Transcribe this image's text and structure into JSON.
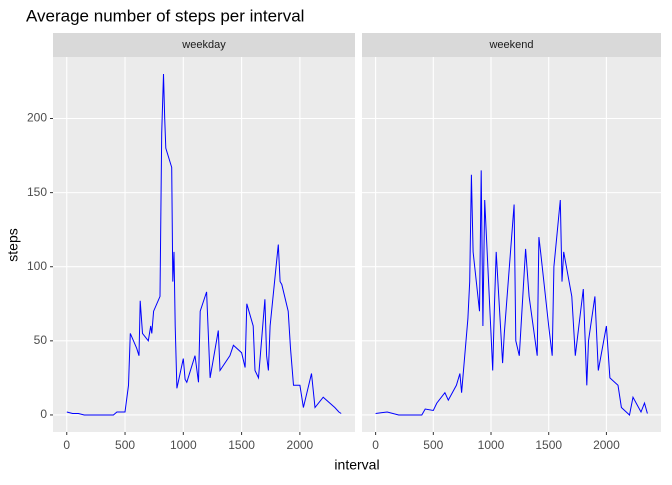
{
  "chart_data": {
    "type": "line",
    "title": "Average number of steps per interval",
    "xlabel": "interval",
    "ylabel": "steps",
    "color": "#0000ff",
    "grid": true,
    "xlim": [
      -118,
      2473
    ],
    "ylim": [
      -11.5,
      241.5
    ],
    "xticks": [
      0,
      500,
      1000,
      1500,
      2000
    ],
    "yticks": [
      0,
      50,
      100,
      150,
      200
    ],
    "facets": [
      {
        "name": "weekday",
        "x": [
          0,
          50,
          100,
          150,
          200,
          300,
          400,
          430,
          500,
          530,
          545,
          600,
          620,
          630,
          650,
          700,
          720,
          730,
          745,
          800,
          815,
          830,
          840,
          850,
          900,
          910,
          920,
          930,
          945,
          1000,
          1015,
          1030,
          1100,
          1130,
          1145,
          1200,
          1230,
          1300,
          1315,
          1400,
          1430,
          1500,
          1530,
          1545,
          1600,
          1615,
          1645,
          1700,
          1715,
          1730,
          1745,
          1815,
          1830,
          1845,
          1900,
          1920,
          1945,
          2000,
          2030,
          2100,
          2130,
          2200,
          2300,
          2335,
          2355
        ],
        "values": [
          2,
          1,
          1,
          0,
          0,
          0,
          0,
          2,
          2,
          20,
          55,
          45,
          40,
          77,
          55,
          50,
          60,
          55,
          70,
          80,
          190,
          230,
          200,
          180,
          167,
          90,
          110,
          60,
          18,
          38,
          24,
          22,
          40,
          22,
          70,
          83,
          25,
          57,
          30,
          40,
          47,
          42,
          32,
          75,
          60,
          30,
          25,
          78,
          40,
          30,
          60,
          115,
          90,
          88,
          70,
          45,
          20,
          20,
          5,
          28,
          5,
          12,
          5,
          2,
          1
        ]
      },
      {
        "name": "weekend",
        "x": [
          0,
          100,
          200,
          300,
          400,
          430,
          500,
          530,
          600,
          630,
          700,
          730,
          745,
          800,
          815,
          830,
          845,
          900,
          915,
          930,
          945,
          1000,
          1015,
          1030,
          1045,
          1100,
          1115,
          1200,
          1215,
          1245,
          1300,
          1330,
          1400,
          1415,
          1430,
          1500,
          1530,
          1545,
          1600,
          1615,
          1630,
          1700,
          1730,
          1800,
          1830,
          1845,
          1900,
          1930,
          2000,
          2030,
          2100,
          2130,
          2200,
          2230,
          2300,
          2330,
          2355
        ],
        "values": [
          1,
          2,
          0,
          0,
          0,
          4,
          3,
          8,
          15,
          10,
          20,
          28,
          15,
          65,
          90,
          162,
          110,
          70,
          165,
          60,
          145,
          55,
          30,
          75,
          110,
          35,
          55,
          142,
          50,
          40,
          112,
          80,
          40,
          120,
          110,
          60,
          40,
          100,
          145,
          90,
          110,
          80,
          40,
          85,
          20,
          50,
          80,
          30,
          60,
          25,
          20,
          5,
          0,
          12,
          2,
          8,
          1
        ]
      }
    ]
  }
}
